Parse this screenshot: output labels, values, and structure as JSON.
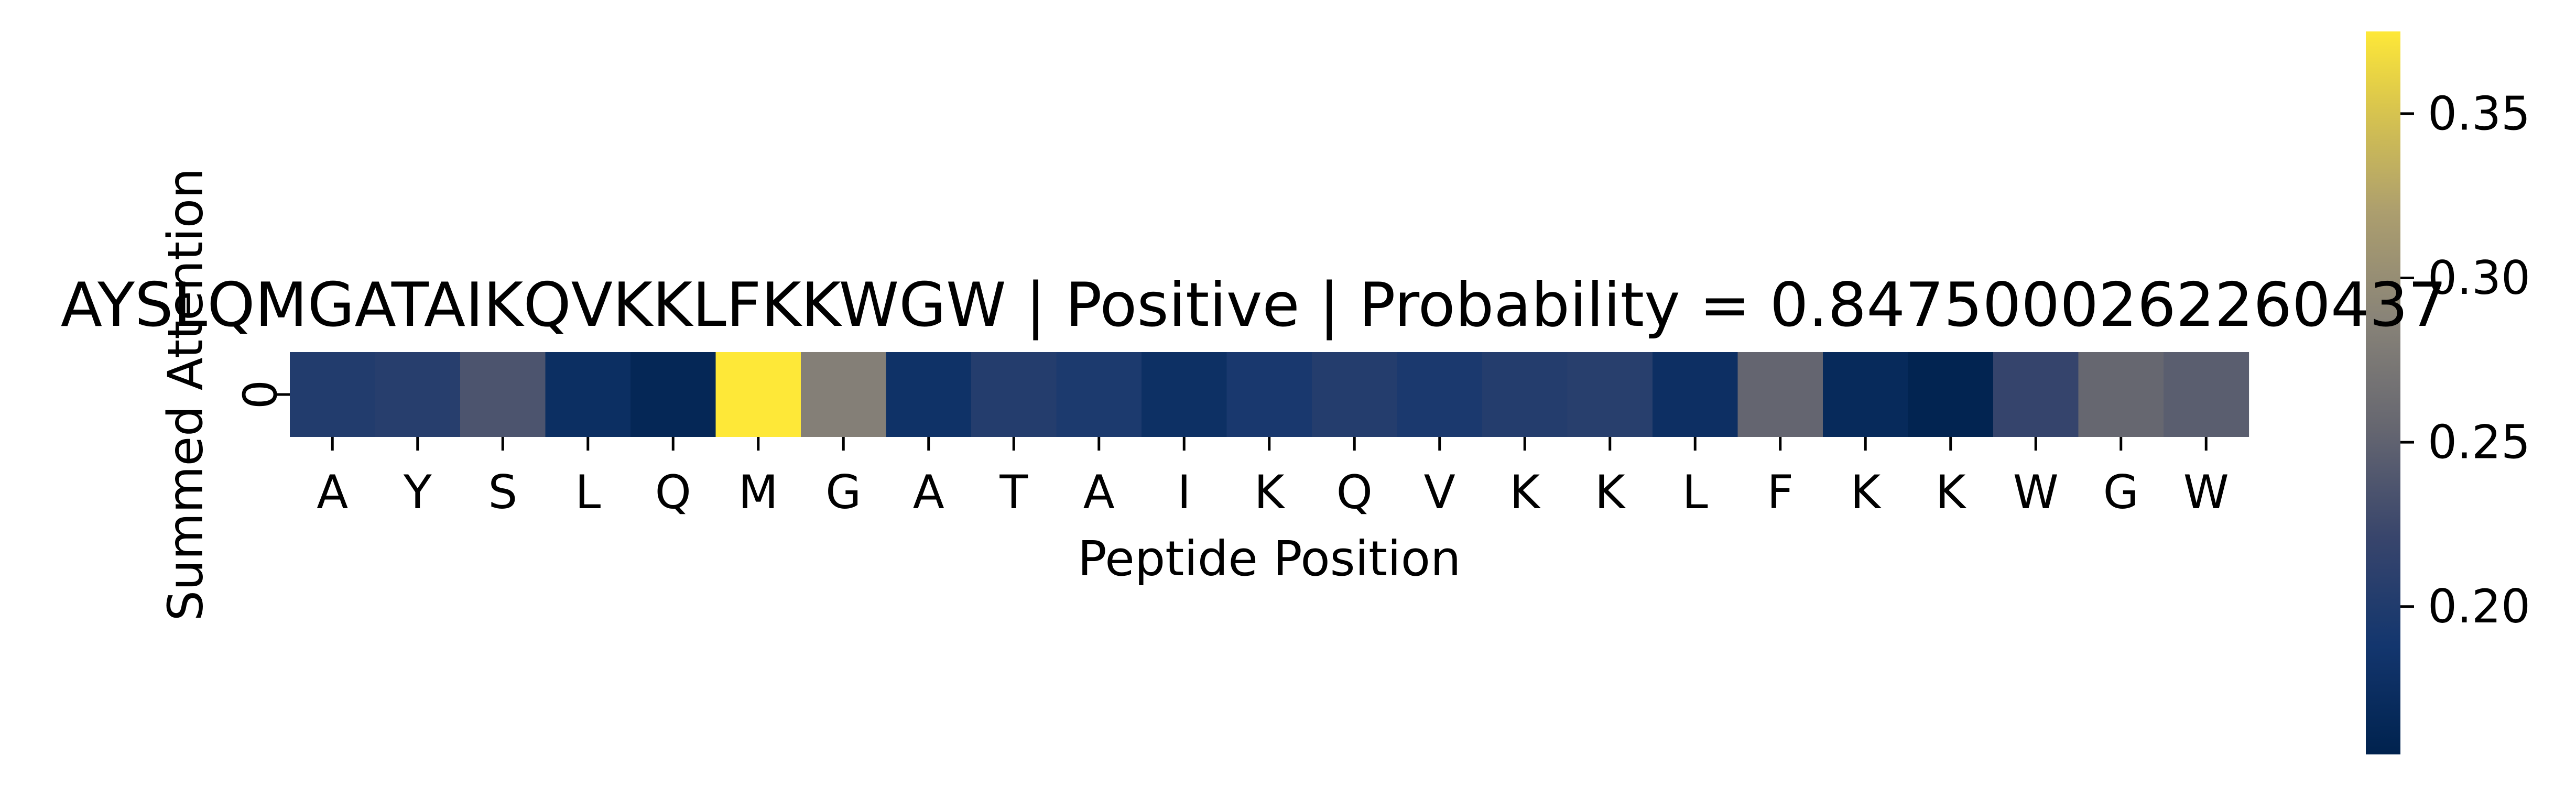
{
  "chart_data": {
    "type": "heatmap",
    "title": "AYSLQMGATAIKQVKKLFKKWGW | Positive | Probability = 0.8475000262260437",
    "xlabel": "Peptide Position",
    "ylabel": "Summed Attention",
    "x_categories": [
      "A",
      "Y",
      "S",
      "L",
      "Q",
      "M",
      "G",
      "A",
      "T",
      "A",
      "I",
      "K",
      "Q",
      "V",
      "K",
      "K",
      "L",
      "F",
      "K",
      "K",
      "W",
      "G",
      "W"
    ],
    "y_categories": [
      "0"
    ],
    "values": [
      [
        0.201,
        0.206,
        0.236,
        0.176,
        0.163,
        0.375,
        0.283,
        0.181,
        0.203,
        0.196,
        0.178,
        0.193,
        0.203,
        0.195,
        0.203,
        0.207,
        0.177,
        0.253,
        0.168,
        0.158,
        0.218,
        0.255,
        0.246
      ]
    ],
    "colormap": "cividis",
    "colorbar": {
      "vmin": 0.155,
      "vmax": 0.375,
      "ticks": [
        0.2,
        0.25,
        0.3,
        0.35
      ],
      "tick_labels": [
        "0.20",
        "0.25",
        "0.30",
        "0.35"
      ]
    },
    "grid": false,
    "legend": "none"
  }
}
